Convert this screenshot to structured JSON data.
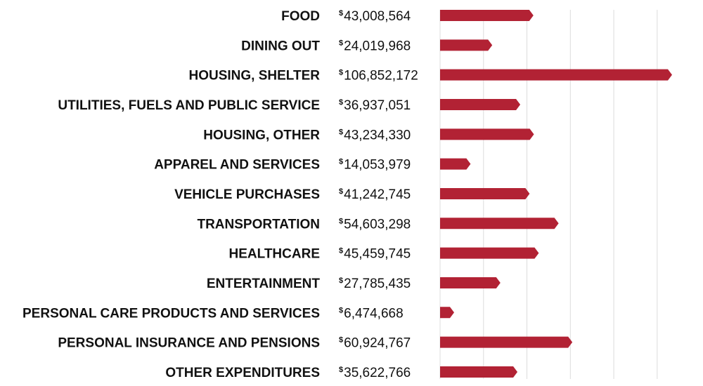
{
  "chart_data": {
    "type": "bar",
    "orientation": "horizontal",
    "currency_symbol": "$",
    "bar_color": "#b22234",
    "grid": true,
    "xlim": [
      0,
      110000000
    ],
    "grid_step": 20000000,
    "categories": [
      "FOOD",
      "DINING OUT",
      "HOUSING, SHELTER",
      "UTILITIES, FUELS AND PUBLIC SERVICE",
      "HOUSING, OTHER",
      "APPAREL AND SERVICES",
      "VEHICLE PURCHASES",
      "TRANSPORTATION",
      "HEALTHCARE",
      "ENTERTAINMENT",
      "PERSONAL CARE PRODUCTS AND SERVICES",
      "PERSONAL INSURANCE AND PENSIONS",
      "OTHER EXPENDITURES"
    ],
    "values": [
      43008564,
      24019968,
      106852172,
      36937051,
      43234330,
      14053979,
      41242745,
      54603298,
      45459745,
      27785435,
      6474668,
      60924767,
      35622766
    ],
    "value_labels": [
      "43,008,564",
      "24,019,968",
      "106,852,172",
      "36,937,051",
      "43,234,330",
      "14,053,979",
      "41,242,745",
      "54,603,298",
      "45,459,745",
      "27,785,435",
      "6,474,668",
      "60,924,767",
      "35,622,766"
    ]
  }
}
